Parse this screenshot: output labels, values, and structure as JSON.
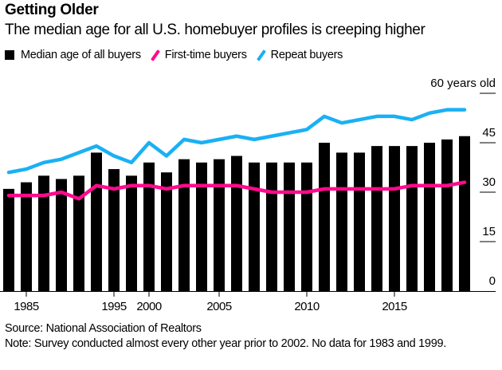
{
  "chart_data": {
    "type": "bar",
    "title": "Getting Older",
    "subtitle": "The median age for all U.S. homebuyer profiles is creeping higher",
    "categories": [
      "1981",
      "1985",
      "1987",
      "1989",
      "1991",
      "1993",
      "1995",
      "1997",
      "2000",
      "2001",
      "2003",
      "2004",
      "2005",
      "2006",
      "2007",
      "2008",
      "2009",
      "2010",
      "2011",
      "2012",
      "2013",
      "2014",
      "2015",
      "2016",
      "2017",
      "2018",
      "2019"
    ],
    "xticks": [
      "1985",
      "1995",
      "2000",
      "2005",
      "2010",
      "2015"
    ],
    "yticks": [
      0,
      15,
      30,
      45,
      60
    ],
    "ytick_labels": [
      "0",
      "15",
      "30",
      "45",
      "60 years old"
    ],
    "ylim": [
      0,
      60
    ],
    "xlabel": "",
    "ylabel": "",
    "series": [
      {
        "name": "Median age of all buyers",
        "kind": "bar",
        "color": "#000000",
        "values": [
          31,
          33,
          35,
          34,
          35,
          42,
          37,
          35,
          39,
          36,
          40,
          39,
          40,
          41,
          39,
          39,
          39,
          39,
          45,
          42,
          42,
          44,
          44,
          44,
          45,
          46,
          47
        ]
      },
      {
        "name": "First-time buyers",
        "kind": "line",
        "color": "#ff0a8c",
        "values": [
          29,
          29,
          29,
          30,
          28,
          32,
          31,
          32,
          32,
          31,
          32,
          32,
          32,
          32,
          31,
          30,
          30,
          30,
          31,
          31,
          31,
          31,
          31,
          32,
          32,
          32,
          33
        ]
      },
      {
        "name": "Repeat buyers",
        "kind": "line",
        "color": "#1ab0f5",
        "values": [
          36,
          37,
          39,
          40,
          42,
          44,
          41,
          39,
          45,
          41,
          46,
          45,
          46,
          47,
          46,
          47,
          48,
          49,
          53,
          51,
          52,
          53,
          53,
          52,
          54,
          55,
          55
        ]
      }
    ],
    "legend_position": "top-left",
    "grid": false
  },
  "footer": {
    "source": "Source: National Association of Realtors",
    "note": "Note: Survey conducted almost every other year prior to 2002. No data for 1983 and 1999."
  }
}
